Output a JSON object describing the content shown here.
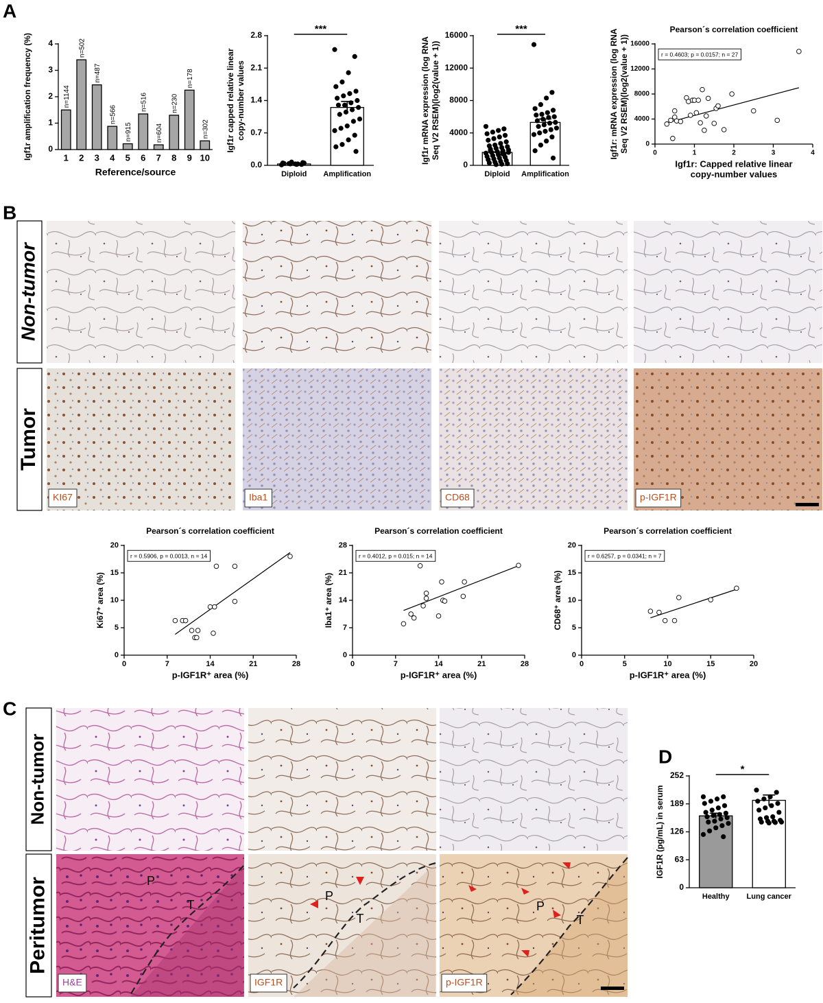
{
  "figure": {
    "panel_letters": [
      "A",
      "B",
      "C",
      "D"
    ],
    "b_rows": [
      "Non-tumor",
      "Tumor"
    ],
    "b_stains": [
      "KI67",
      "Iba1",
      "CD68",
      "p-IGF1R"
    ],
    "c_rows": [
      "Non-tumor",
      "Peritumor"
    ],
    "c_stains": [
      "H&E",
      "IGF1R",
      "p-IGF1R"
    ],
    "c_regions": [
      "P",
      "T"
    ]
  },
  "chart_data": [
    {
      "type": "bar",
      "ylabel": [
        "Igf1r amplification frequency (%)"
      ],
      "xlabel": [
        "Reference/source"
      ],
      "categories": [
        "1",
        "2",
        "3",
        "4",
        "5",
        "6",
        "7",
        "8",
        "9",
        "10"
      ],
      "values": [
        1.5,
        3.4,
        2.45,
        0.88,
        0.22,
        1.35,
        0.18,
        1.3,
        2.25,
        0.33
      ],
      "bar_labels": [
        "n=1144",
        "n=502",
        "n=487",
        "n=566",
        "n=915",
        "n=516",
        "n=604",
        "n=230",
        "n=178",
        "n=302"
      ],
      "color": "#a6a6a6",
      "ylim": [
        0,
        4
      ],
      "yticks": [
        0,
        1,
        2,
        3,
        4
      ]
    },
    {
      "type": "bar",
      "ylabel": [
        "Igf1r capped relative linear",
        "copy-number values"
      ],
      "categories": [
        "Diploid",
        "Amplification"
      ],
      "values": [
        0.03,
        1.25
      ],
      "errors": [
        0.01,
        0.13
      ],
      "points": [
        [
          0.01,
          0.02,
          0.03,
          0.04,
          0.05,
          0.06,
          0.02,
          0.03,
          0.04,
          0.05,
          0.03,
          0.07
        ],
        [
          2.5,
          2.35,
          2.0,
          1.8,
          1.7,
          1.6,
          1.55,
          1.5,
          1.45,
          1.4,
          1.35,
          1.3,
          1.3,
          1.25,
          1.2,
          1.15,
          1.1,
          1.0,
          0.95,
          0.85,
          0.8,
          0.75,
          0.65,
          0.55,
          0.45,
          0.4,
          0.3
        ]
      ],
      "significance": "***",
      "color": "#ffffff",
      "ylim": [
        0,
        2.8
      ],
      "yticks": [
        {
          "value": 0,
          "label": "0.0"
        },
        0.7,
        1.4,
        2.1,
        2.8
      ]
    },
    {
      "type": "bar",
      "ylabel": [
        "Igf1r mRNA expression (log RNA",
        "Seq V2 RSEM)(log2(value + 1))"
      ],
      "categories": [
        "Diploid",
        "Amplification"
      ],
      "values": [
        1600,
        5300
      ],
      "errors": [
        60,
        420
      ],
      "points": [
        [
          4800,
          4500,
          4300,
          4100,
          3900,
          3700,
          3500,
          3300,
          3100,
          2900,
          2700,
          2500,
          2400,
          2300,
          2200,
          2100,
          2000,
          1900,
          1800,
          1700,
          1600,
          1500,
          1400,
          1300,
          1200,
          1100,
          1000,
          900,
          800,
          700,
          600,
          500,
          400,
          300,
          200,
          150,
          100,
          1800,
          1600,
          1400
        ],
        [
          14900,
          9000,
          8300,
          7500,
          7000,
          6800,
          6500,
          6300,
          6200,
          6000,
          5900,
          5700,
          5500,
          5300,
          5200,
          5000,
          4800,
          4600,
          4400,
          4200,
          4000,
          3800,
          3500,
          3000,
          2500,
          1800,
          900
        ]
      ],
      "significance": "***",
      "color": "#ffffff",
      "ylim": [
        0,
        16000
      ],
      "yticks": [
        0,
        4000,
        8000,
        12000,
        16000
      ]
    },
    {
      "type": "scatter",
      "title": "Pearson´s correlation coefficient",
      "annotation": "r = 0.4603; p = 0.0157; n = 27",
      "ylabel": [
        "Igf1r: mRNA expression (log RNA",
        "Seq V2 RSEM)(log2(value + 1))"
      ],
      "xlabel": [
        "Igf1r: Capped relative linear",
        "copy-number values"
      ],
      "x": [
        0.3,
        0.4,
        0.45,
        0.5,
        0.5,
        0.55,
        0.65,
        0.8,
        0.85,
        0.9,
        0.95,
        1.0,
        1.05,
        1.1,
        1.15,
        1.2,
        1.25,
        1.3,
        1.35,
        1.5,
        1.55,
        1.6,
        1.75,
        1.95,
        2.5,
        3.1,
        3.65
      ],
      "values": [
        3200,
        3800,
        900,
        4300,
        5300,
        3700,
        3600,
        7400,
        6800,
        4600,
        7000,
        7000,
        5000,
        7000,
        3400,
        8700,
        2200,
        4500,
        7300,
        3300,
        5700,
        6100,
        2300,
        8000,
        5300,
        3800,
        14800
      ],
      "fit": {
        "x": [
          0.3,
          3.65
        ],
        "values": [
          3400,
          9000
        ]
      },
      "xlim": [
        0,
        4
      ],
      "xticks": [
        0,
        1,
        2,
        3,
        4
      ],
      "ylim": [
        0,
        16000
      ],
      "yticks": [
        0,
        4000,
        8000,
        12000,
        16000
      ]
    },
    {
      "type": "scatter",
      "title": "Pearson´s correlation coefficient",
      "annotation": "r = 0.5906, p = 0.0013, n = 14",
      "ylabel": [
        "Ki67⁺ area (%)"
      ],
      "xlabel": [
        "p-IGF1R⁺ area (%)"
      ],
      "x": [
        8.3,
        9.5,
        10,
        11,
        11.5,
        11.8,
        12,
        14,
        14.5,
        14.7,
        15,
        18,
        18,
        27
      ],
      "values": [
        6.3,
        6.3,
        6.3,
        4.5,
        3.2,
        3.2,
        4.5,
        8.8,
        4,
        8.8,
        16.2,
        16.2,
        9.8,
        18
      ],
      "fit": {
        "x": [
          8.3,
          27
        ],
        "values": [
          3.8,
          18.7
        ]
      },
      "xlim": [
        0,
        28
      ],
      "xticks": [
        0,
        7,
        14,
        21,
        28
      ],
      "ylim": [
        0,
        20
      ],
      "yticks": [
        0,
        5,
        10,
        15,
        20
      ]
    },
    {
      "type": "scatter",
      "title": "Pearson´s correlation coefficient",
      "annotation": "r = 0.4012, p = 0.015; n = 14",
      "ylabel": [
        "Iba1⁺ area (%)"
      ],
      "xlabel": [
        "p-IGF1R⁺ area (%)"
      ],
      "x": [
        8.3,
        9.5,
        10,
        11,
        11.5,
        12,
        12,
        14,
        14.5,
        14.7,
        15,
        18,
        18.2,
        27
      ],
      "values": [
        8,
        10.5,
        9.5,
        22.8,
        12.6,
        14.5,
        15.8,
        10,
        18.7,
        14,
        13.8,
        15,
        18.7,
        22.9
      ],
      "fit": {
        "x": [
          8.3,
          27
        ],
        "values": [
          11.4,
          22.8
        ]
      },
      "xlim": [
        0,
        28
      ],
      "xticks": [
        0,
        7,
        14,
        21,
        28
      ],
      "ylim": [
        0,
        28
      ],
      "yticks": [
        0,
        7,
        14,
        21,
        28
      ]
    },
    {
      "type": "scatter",
      "title": "Pearson´s correlation coefficient",
      "annotation": "r = 0.6257, p = 0.0341; n = 7",
      "ylabel": [
        "CD68⁺ area (%)"
      ],
      "xlabel": [
        "p-IGF1R⁺ area (%)"
      ],
      "x": [
        8,
        9,
        9.7,
        10.8,
        11.3,
        15,
        18
      ],
      "values": [
        8,
        7.8,
        6.3,
        6.3,
        10.5,
        10.1,
        12.2
      ],
      "fit": {
        "x": [
          8,
          18
        ],
        "values": [
          6.8,
          12
        ]
      },
      "xlim": [
        0,
        20
      ],
      "xticks": [
        0,
        5,
        10,
        15,
        20
      ],
      "ylim": [
        0,
        20
      ],
      "yticks": [
        0,
        5,
        10,
        15,
        20
      ]
    },
    {
      "type": "bar",
      "ylabel": [
        "IGF1R (pg/mL) in serum"
      ],
      "categories": [
        "Healthy",
        "Lung cancer"
      ],
      "values": [
        162,
        197
      ],
      "errors": [
        6,
        12
      ],
      "points": [
        [
          205,
          205,
          200,
          195,
          190,
          185,
          180,
          175,
          170,
          168,
          165,
          163,
          160,
          158,
          155,
          150,
          148,
          145,
          140,
          135,
          128,
          120,
          115
        ],
        [
          220,
          215,
          205,
          200,
          195,
          190,
          185,
          180,
          175,
          170,
          160,
          158,
          155,
          152,
          150,
          150,
          148,
          148,
          147,
          146
        ]
      ],
      "significance": "*",
      "colors": [
        "#9a9a9a",
        "#ffffff"
      ],
      "ylim": [
        0,
        252
      ],
      "yticks": [
        0,
        63,
        126,
        189,
        252
      ]
    }
  ]
}
